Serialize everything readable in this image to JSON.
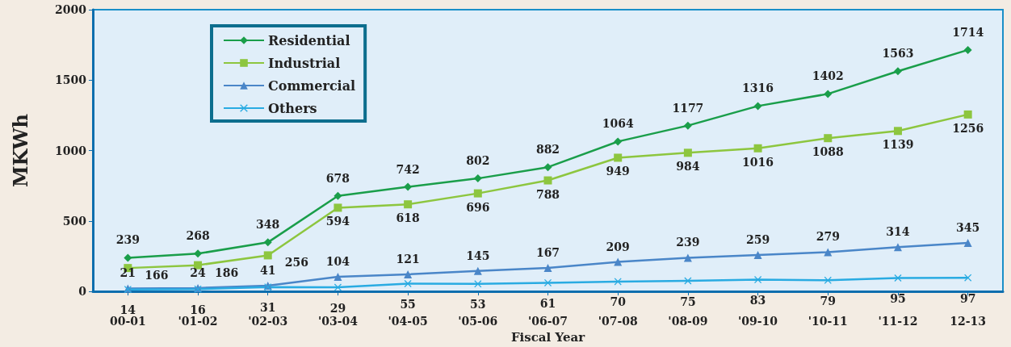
{
  "chart_data": {
    "type": "line",
    "xlabel": "Fiscal Year",
    "ylabel": "MKWh",
    "categories": [
      "00-01",
      "'01-02",
      "'02-03",
      "'03-04",
      "'04-05",
      "'05-06",
      "'06-07",
      "'07-08",
      "'08-09",
      "'09-10",
      "'10-11",
      "'11-12",
      "12-13"
    ],
    "series": [
      {
        "name": "Residential",
        "color": "#1a9e4a",
        "marker": "diamond",
        "values": [
          239,
          268,
          348,
          678,
          742,
          802,
          882,
          1064,
          1177,
          1316,
          1402,
          1563,
          1714
        ]
      },
      {
        "name": "Industrial",
        "color": "#8dc63f",
        "marker": "square",
        "values": [
          166,
          186,
          256,
          594,
          618,
          696,
          788,
          949,
          984,
          1016,
          1088,
          1139,
          1256
        ]
      },
      {
        "name": "Commercial",
        "color": "#4a86c8",
        "marker": "triangle",
        "values": [
          21,
          24,
          41,
          104,
          121,
          145,
          167,
          209,
          239,
          259,
          279,
          314,
          345
        ]
      },
      {
        "name": "Others",
        "color": "#29abe2",
        "marker": "cross",
        "values": [
          14,
          16,
          31,
          29,
          55,
          53,
          61,
          70,
          75,
          83,
          79,
          95,
          97
        ]
      }
    ],
    "ylim": [
      0,
      2000
    ],
    "yticks": [
      0,
      500,
      1000,
      1500,
      2000
    ],
    "grid": false,
    "legend": "top left",
    "data_labels": true
  }
}
